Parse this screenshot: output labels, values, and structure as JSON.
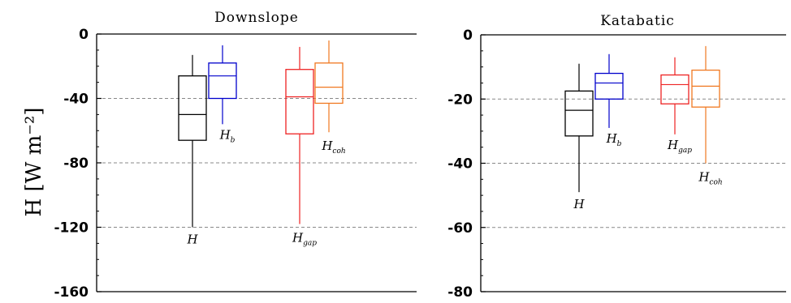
{
  "figure": {
    "ylabel": "H [W m⁻²]",
    "colors": {
      "H": "#000000",
      "Hb": "#0000cc",
      "Hgap": "#ee2222",
      "Hcoh": "#f07820",
      "grid": "#888888"
    }
  },
  "chart_data": [
    {
      "type": "box",
      "title": "Downslope",
      "ylim": [
        -160,
        0
      ],
      "yticks": [
        0,
        -40,
        -80,
        -120,
        -160
      ],
      "ytick_labels": [
        "0",
        "-40",
        "-80",
        "-120",
        "-160"
      ],
      "grid": "dashed horizontal at -40, -80, -120",
      "series": [
        {
          "name": "H",
          "label_main": "H",
          "label_sub": "",
          "color_key": "H",
          "whisker_low": -120,
          "q1": -66,
          "median": -50,
          "q3": -26,
          "whisker_high": -13
        },
        {
          "name": "H_b",
          "label_main": "H",
          "label_sub": "b",
          "color_key": "Hb",
          "whisker_low": -56,
          "q1": -40,
          "median": -26,
          "q3": -18,
          "whisker_high": -7
        },
        {
          "name": "H_gap",
          "label_main": "H",
          "label_sub": "gap",
          "color_key": "Hgap",
          "whisker_low": -118,
          "q1": -62,
          "median": -39,
          "q3": -22,
          "whisker_high": -8
        },
        {
          "name": "H_coh",
          "label_main": "H",
          "label_sub": "coh",
          "color_key": "Hcoh",
          "whisker_low": -61,
          "q1": -43,
          "median": -33,
          "q3": -18,
          "whisker_high": -4
        }
      ]
    },
    {
      "type": "box",
      "title": "Katabatic",
      "ylim": [
        -80,
        0
      ],
      "yticks": [
        0,
        -20,
        -40,
        -60,
        -80
      ],
      "ytick_labels": [
        "0",
        "-20",
        "-40",
        "-60",
        "-80"
      ],
      "grid": "dashed horizontal at -20, -40, -60",
      "series": [
        {
          "name": "H",
          "label_main": "H",
          "label_sub": "",
          "color_key": "H",
          "whisker_low": -49,
          "q1": -31.5,
          "median": -23.5,
          "q3": -17.5,
          "whisker_high": -9
        },
        {
          "name": "H_b",
          "label_main": "H",
          "label_sub": "b",
          "color_key": "Hb",
          "whisker_low": -29,
          "q1": -20,
          "median": -15,
          "q3": -12,
          "whisker_high": -6
        },
        {
          "name": "H_gap",
          "label_main": "H",
          "label_sub": "gap",
          "color_key": "Hgap",
          "whisker_low": -31,
          "q1": -21.5,
          "median": -15.5,
          "q3": -12.5,
          "whisker_high": -7
        },
        {
          "name": "H_coh",
          "label_main": "H",
          "label_sub": "coh",
          "color_key": "Hcoh",
          "whisker_low": -40,
          "q1": -22.5,
          "median": -16,
          "q3": -11,
          "whisker_high": -3.5
        }
      ]
    }
  ]
}
